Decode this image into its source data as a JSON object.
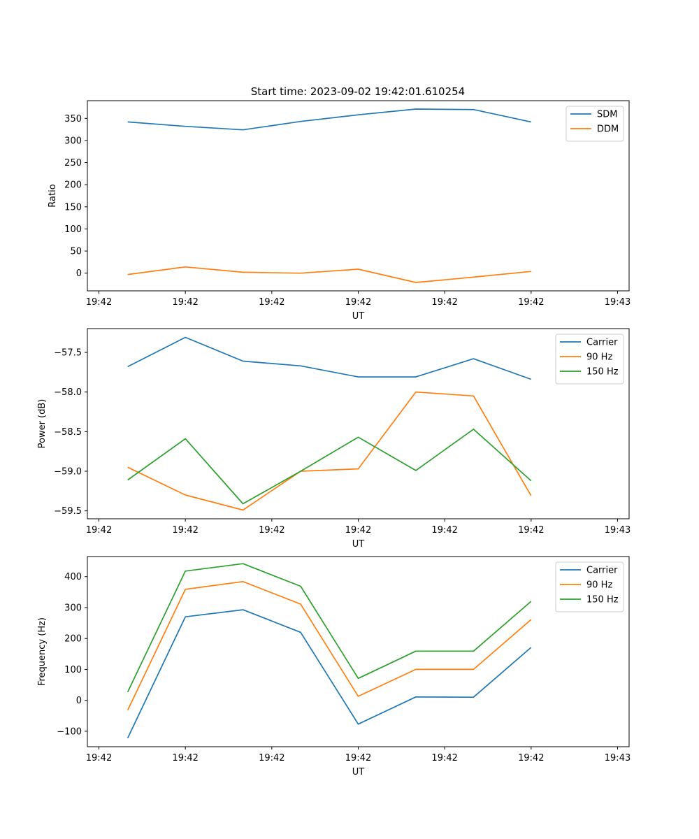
{
  "figure": {
    "title": "Start time: 2023-09-02 19:42:01.610254"
  },
  "colors": {
    "blue": "#1f77b4",
    "orange": "#ff7f0e",
    "green": "#2ca02c"
  },
  "chart_data": [
    {
      "type": "line",
      "title": "Start time: 2023-09-02 19:42:01.610254",
      "xlabel": "UT",
      "ylabel": "Ratio",
      "x": [
        1,
        2,
        3,
        4,
        5,
        6,
        7,
        8
      ],
      "xlim": [
        0.3,
        9.7
      ],
      "xticks": [
        0.5,
        2,
        3.5,
        5,
        6.5,
        8,
        9.5
      ],
      "xtick_labels": [
        "19:42",
        "19:42",
        "19:42",
        "19:42",
        "19:42",
        "19:42",
        "19:43"
      ],
      "ylim": [
        -40,
        390
      ],
      "yticks": [
        0,
        50,
        100,
        150,
        200,
        250,
        300,
        350
      ],
      "ytick_labels": [
        "0",
        "50",
        "100",
        "150",
        "200",
        "250",
        "300",
        "350"
      ],
      "legend_position": "top-right",
      "series": [
        {
          "name": "SDM",
          "color": "#1f77b4",
          "values": [
            342,
            332,
            324,
            343,
            358,
            371,
            370,
            342
          ]
        },
        {
          "name": "DDM",
          "color": "#ff7f0e",
          "values": [
            -3,
            14,
            2,
            0,
            9,
            -21,
            -9,
            4
          ]
        }
      ]
    },
    {
      "type": "line",
      "title": "",
      "xlabel": "UT",
      "ylabel": "Power (dB)",
      "x": [
        1,
        2,
        3,
        4,
        5,
        6,
        7,
        8
      ],
      "xlim": [
        0.3,
        9.7
      ],
      "xticks": [
        0.5,
        2,
        3.5,
        5,
        6.5,
        8,
        9.5
      ],
      "xtick_labels": [
        "19:42",
        "19:42",
        "19:42",
        "19:42",
        "19:42",
        "19:42",
        "19:43"
      ],
      "ylim": [
        -59.6,
        -57.2
      ],
      "yticks": [
        -59.5,
        -59.0,
        -58.5,
        -58.0,
        -57.5
      ],
      "ytick_labels": [
        "−59.5",
        "−59.0",
        "−58.5",
        "−58.0",
        "−57.5"
      ],
      "legend_position": "top-right",
      "series": [
        {
          "name": "Carrier",
          "color": "#1f77b4",
          "values": [
            -57.68,
            -57.31,
            -57.61,
            -57.67,
            -57.81,
            -57.81,
            -57.58,
            -57.84
          ]
        },
        {
          "name": "90 Hz",
          "color": "#ff7f0e",
          "values": [
            -58.95,
            -59.3,
            -59.49,
            -59.0,
            -58.97,
            -58.0,
            -58.05,
            -59.31
          ]
        },
        {
          "name": "150 Hz",
          "color": "#2ca02c",
          "values": [
            -59.11,
            -58.59,
            -59.41,
            -59.0,
            -58.57,
            -58.99,
            -58.47,
            -59.12
          ]
        }
      ]
    },
    {
      "type": "line",
      "title": "",
      "xlabel": "UT",
      "ylabel": "Frequency (Hz)",
      "x": [
        1,
        2,
        3,
        4,
        5,
        6,
        7,
        8
      ],
      "xlim": [
        0.3,
        9.7
      ],
      "xticks": [
        0.5,
        2,
        3.5,
        5,
        6.5,
        8,
        9.5
      ],
      "xtick_labels": [
        "19:42",
        "19:42",
        "19:42",
        "19:42",
        "19:42",
        "19:42",
        "19:43"
      ],
      "ylim": [
        -150,
        465
      ],
      "yticks": [
        -100,
        0,
        100,
        200,
        300,
        400
      ],
      "ytick_labels": [
        "−100",
        "0",
        "100",
        "200",
        "300",
        "400"
      ],
      "legend_position": "top-right",
      "series": [
        {
          "name": "Carrier",
          "color": "#1f77b4",
          "values": [
            -122,
            270,
            293,
            220,
            -77,
            11,
            10,
            171
          ]
        },
        {
          "name": "90 Hz",
          "color": "#ff7f0e",
          "values": [
            -32,
            359,
            384,
            311,
            13,
            100,
            100,
            261
          ]
        },
        {
          "name": "150 Hz",
          "color": "#2ca02c",
          "values": [
            27,
            418,
            442,
            369,
            71,
            159,
            159,
            320
          ]
        }
      ]
    }
  ]
}
